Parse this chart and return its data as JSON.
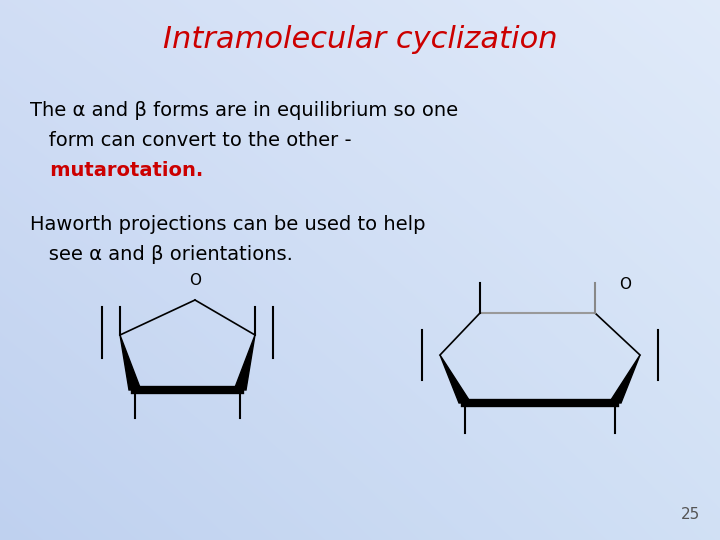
{
  "title": "Intramolecular cyclization",
  "title_color": "#cc0000",
  "title_fontsize": 22,
  "text_line1": "The α and β forms are in equilibrium so one",
  "text_line2": "   form can convert to the other -",
  "text_mutarotation": "   mutarotation.",
  "text_haworth1": "Haworth projections can be used to help",
  "text_haworth2": "   see α and β orientations.",
  "page_number": "25",
  "text_color": "#000000",
  "text_fontsize": 14,
  "mutarotation_color": "#cc0000",
  "bg_gradient_tl": [
    0.82,
    0.87,
    0.96
  ],
  "bg_gradient_tr": [
    0.88,
    0.92,
    0.98
  ],
  "bg_gradient_bl": [
    0.75,
    0.82,
    0.94
  ],
  "bg_gradient_br": [
    0.82,
    0.88,
    0.96
  ]
}
